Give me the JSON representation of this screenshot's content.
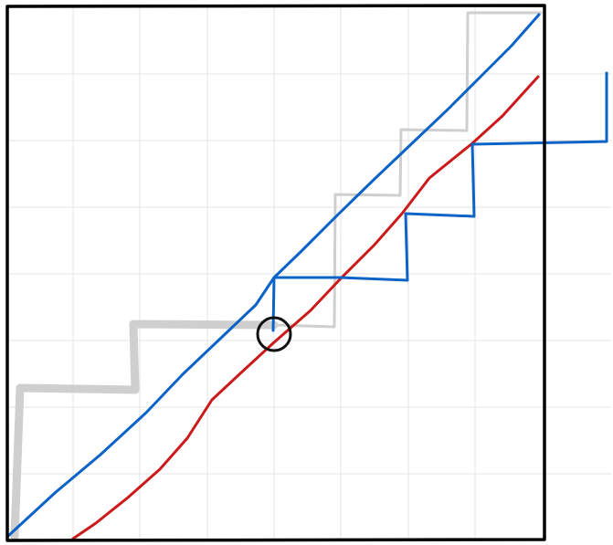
{
  "canvas": {
    "background": "#ffffff",
    "frame_color": "#000000",
    "grid_color": "#e3e3e3"
  },
  "diagram": {
    "title": "",
    "columns": 8,
    "rows": 8,
    "colors": {
      "blue_diagonal": "#0b63c8",
      "red_diagonal": "#cc1a1a",
      "blue_staircase": "#0b63c8",
      "gray_staircase": "#cfcfcf",
      "marker_circle": "#111111"
    }
  }
}
